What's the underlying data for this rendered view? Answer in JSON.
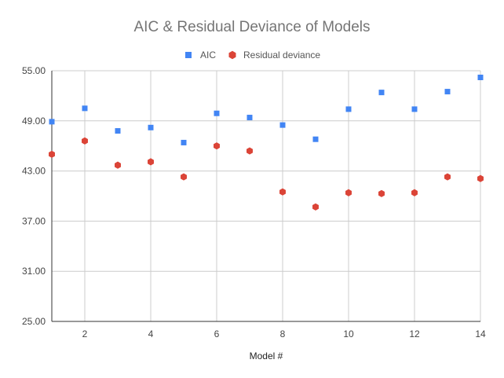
{
  "chart_data": {
    "type": "scatter",
    "title": "AIC & Residual Deviance of Models",
    "xlabel": "Model #",
    "ylabel": "",
    "xlim": [
      1,
      14
    ],
    "ylim": [
      25,
      55
    ],
    "x_ticks": [
      2,
      4,
      6,
      8,
      10,
      12,
      14
    ],
    "x_tick_labels": [
      "2",
      "4",
      "6",
      "8",
      "10",
      "12",
      "14"
    ],
    "y_ticks": [
      25,
      31,
      37,
      43,
      49,
      55
    ],
    "y_tick_labels": [
      "25.00",
      "31.00",
      "37.00",
      "43.00",
      "49.00",
      "55.00"
    ],
    "grid": true,
    "legend_position": "top",
    "x": [
      1,
      2,
      3,
      4,
      5,
      6,
      7,
      8,
      9,
      10,
      11,
      12,
      13,
      14
    ],
    "series": [
      {
        "name": "AIC",
        "marker": "square",
        "color": "#4285f4",
        "values": [
          48.9,
          50.5,
          47.8,
          48.2,
          46.4,
          49.9,
          49.4,
          48.5,
          46.8,
          50.4,
          52.4,
          50.4,
          52.5,
          54.2
        ]
      },
      {
        "name": "Residual deviance",
        "marker": "hexagon",
        "color": "#db4437",
        "values": [
          45.0,
          46.6,
          43.7,
          44.1,
          42.3,
          46.0,
          45.4,
          40.5,
          38.7,
          40.4,
          40.3,
          40.4,
          42.3,
          42.1
        ]
      }
    ]
  }
}
